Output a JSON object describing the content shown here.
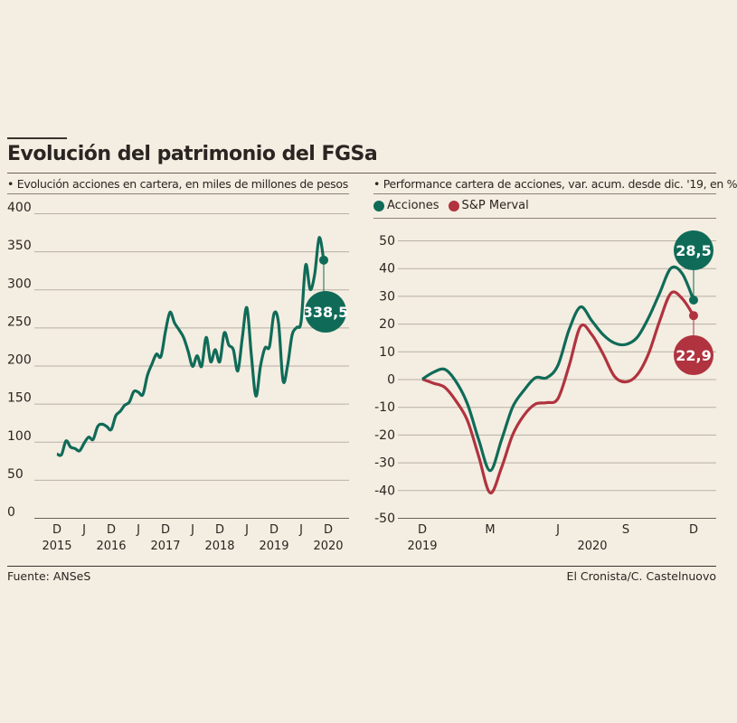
{
  "title": "Evolución del patrimonio del FGSa",
  "footer": {
    "source": "Fuente: ANSeS",
    "credit": "El Cronista/C. Castelnuovo"
  },
  "colors": {
    "background": "#f4ede1",
    "acciones": "#0f6b58",
    "merval": "#b0333f",
    "grid": "#b8b0a6"
  },
  "chart_data": [
    {
      "type": "line",
      "subtitle": "• Evolución acciones en cartera, en miles de millones de pesos",
      "ylim": [
        0,
        400
      ],
      "yticks": [
        0,
        50,
        100,
        150,
        200,
        250,
        300,
        350,
        400
      ],
      "grid": true,
      "x_start": "2015-12",
      "x_frequency": "monthly",
      "xtick_labels": [
        {
          "month": "D",
          "year": "2015",
          "date": "2015-12"
        },
        {
          "month": "J",
          "year": "",
          "date": "2016-06"
        },
        {
          "month": "D",
          "year": "2016",
          "date": "2016-12"
        },
        {
          "month": "J",
          "year": "",
          "date": "2017-06"
        },
        {
          "month": "D",
          "year": "2017",
          "date": "2017-12"
        },
        {
          "month": "J",
          "year": "",
          "date": "2018-06"
        },
        {
          "month": "D",
          "year": "2018",
          "date": "2018-12"
        },
        {
          "month": "J",
          "year": "",
          "date": "2019-06"
        },
        {
          "month": "D",
          "year": "2019",
          "date": "2019-12"
        },
        {
          "month": "J",
          "year": "",
          "date": "2020-06"
        },
        {
          "month": "D",
          "year": "2020",
          "date": "2020-12"
        }
      ],
      "series": [
        {
          "values": [
            84,
            83,
            101,
            93,
            91,
            88,
            98,
            106,
            103,
            120,
            123,
            120,
            116,
            134,
            140,
            148,
            152,
            166,
            165,
            162,
            187,
            202,
            215,
            212,
            245,
            270,
            256,
            247,
            237,
            219,
            199,
            213,
            199,
            237,
            205,
            221,
            205,
            243,
            227,
            221,
            193,
            237,
            276,
            213,
            160,
            199,
            223,
            225,
            268,
            256,
            180,
            200,
            240,
            250,
            258,
            332,
            300,
            320,
            368,
            338.5
          ]
        }
      ],
      "annotation": "338,5"
    },
    {
      "type": "line",
      "subtitle": "• Performance cartera de acciones, var. acum. desde dic. '19, en %",
      "ylim": [
        -50,
        50
      ],
      "yticks": [
        -50,
        -40,
        -30,
        -20,
        -10,
        0,
        10,
        20,
        30,
        40,
        50
      ],
      "grid": true,
      "legend": "top-left",
      "x_start": "2019-12",
      "x_frequency": "semi-monthly",
      "xtick_labels": [
        {
          "month": "D",
          "date": "2019-12"
        },
        {
          "month": "M",
          "date": "2020-03"
        },
        {
          "month": "J",
          "date": "2020-06"
        },
        {
          "month": "S",
          "date": "2020-09"
        },
        {
          "month": "D",
          "date": "2020-12"
        }
      ],
      "year_labels": [
        "2019",
        "2020"
      ],
      "series": [
        {
          "name": "Acciones",
          "color": "#0f6b58",
          "values": [
            0,
            2.5,
            3.5,
            -1,
            -9,
            -22,
            -33,
            -22,
            -10,
            -4,
            0.5,
            0.5,
            5,
            18,
            26,
            21,
            16,
            13,
            12.5,
            15,
            22,
            31,
            40,
            38,
            28.5
          ],
          "annotation": "28,5"
        },
        {
          "name": "S&P Merval",
          "color": "#b0333f",
          "values": [
            0,
            -1.5,
            -3,
            -8,
            -15,
            -28,
            -41,
            -32,
            -20,
            -13,
            -9,
            -8.5,
            -7,
            5,
            19,
            16,
            9,
            1,
            -1,
            1.5,
            9,
            21,
            31,
            29,
            22.9
          ],
          "annotation": "22,9"
        }
      ]
    }
  ]
}
